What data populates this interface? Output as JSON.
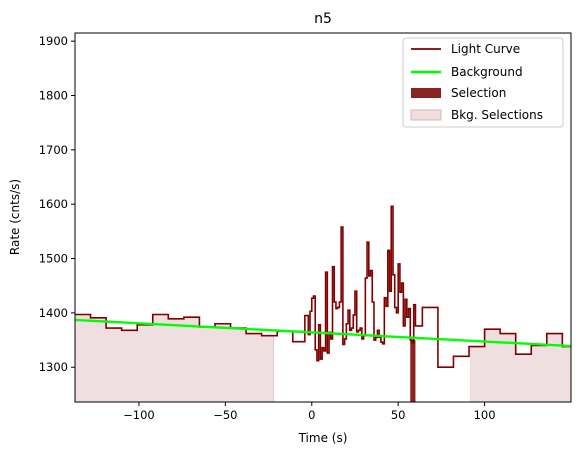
{
  "chart_data": {
    "type": "line",
    "title": "n5",
    "xlabel": "Time (s)",
    "ylabel": "Rate (cnts/s)",
    "xlim": [
      -137,
      150
    ],
    "ylim": [
      1236,
      1915
    ],
    "x_ticks": [
      -100,
      -50,
      0,
      50,
      100
    ],
    "y_ticks": [
      1300,
      1400,
      1500,
      1600,
      1700,
      1800,
      1900
    ],
    "grid": false,
    "legend_position": "top-right",
    "series": [
      {
        "name": "Light Curve",
        "kind": "step",
        "color": "#800000",
        "x": [
          -137,
          -128,
          -119,
          -110,
          -101,
          -92,
          -83,
          -74,
          -65,
          -56,
          -47,
          -38,
          -29,
          -20,
          -11,
          -4,
          -2,
          -1,
          0,
          1,
          2,
          3,
          4,
          5,
          6,
          7,
          8,
          9,
          10,
          11,
          12,
          13,
          14,
          15,
          16,
          17,
          18,
          19,
          20,
          21,
          22,
          23,
          24,
          25,
          26,
          27,
          28,
          29,
          30,
          31,
          32,
          33,
          34,
          35,
          36,
          37,
          38,
          39,
          40,
          41,
          42,
          43,
          44,
          45,
          46,
          47,
          48,
          49,
          50,
          51,
          52,
          53,
          54,
          55,
          56,
          57,
          58,
          59,
          60,
          64,
          73,
          82,
          91,
          100,
          109,
          118,
          127,
          136,
          145,
          150
        ],
        "y": [
          1397,
          1391,
          1372,
          1368,
          1378,
          1397,
          1389,
          1392,
          1374,
          1380,
          1372,
          1362,
          1358,
          1366,
          1347,
          1395,
          1360,
          1403,
          1427,
          1431,
          1332,
          1312,
          1378,
          1315,
          1336,
          1330,
          1475,
          1326,
          1364,
          1352,
          1485,
          1420,
          1408,
          1410,
          1420,
          1558,
          1342,
          1352,
          1380,
          1405,
          1368,
          1372,
          1396,
          1440,
          1365,
          1368,
          1372,
          1352,
          1358,
          1464,
          1530,
          1468,
          1478,
          1420,
          1350,
          1355,
          1368,
          1355,
          1346,
          1343,
          1428,
          1412,
          1515,
          1440,
          1596,
          1470,
          1410,
          1400,
          1490,
          1438,
          1455,
          1376,
          1425,
          1392,
          1408,
          1350,
          1345,
          1415,
          1376,
          1410,
          1300,
          1320,
          1338,
          1370,
          1362,
          1324,
          1340,
          1362,
          1338,
          1346
        ]
      },
      {
        "name": "Background",
        "kind": "line",
        "color": "#00ff00",
        "x": [
          -137,
          150
        ],
        "y": [
          1387,
          1339
        ]
      }
    ],
    "selection": {
      "name": "Selection",
      "color": "#8b2323",
      "x_range": [
        57,
        60
      ]
    },
    "background_selections": {
      "name": "Bkg. Selections",
      "color": "#f0dfe0",
      "ranges": [
        [
          -137,
          -22
        ],
        [
          92,
          150
        ]
      ],
      "baseline": 1236
    }
  }
}
